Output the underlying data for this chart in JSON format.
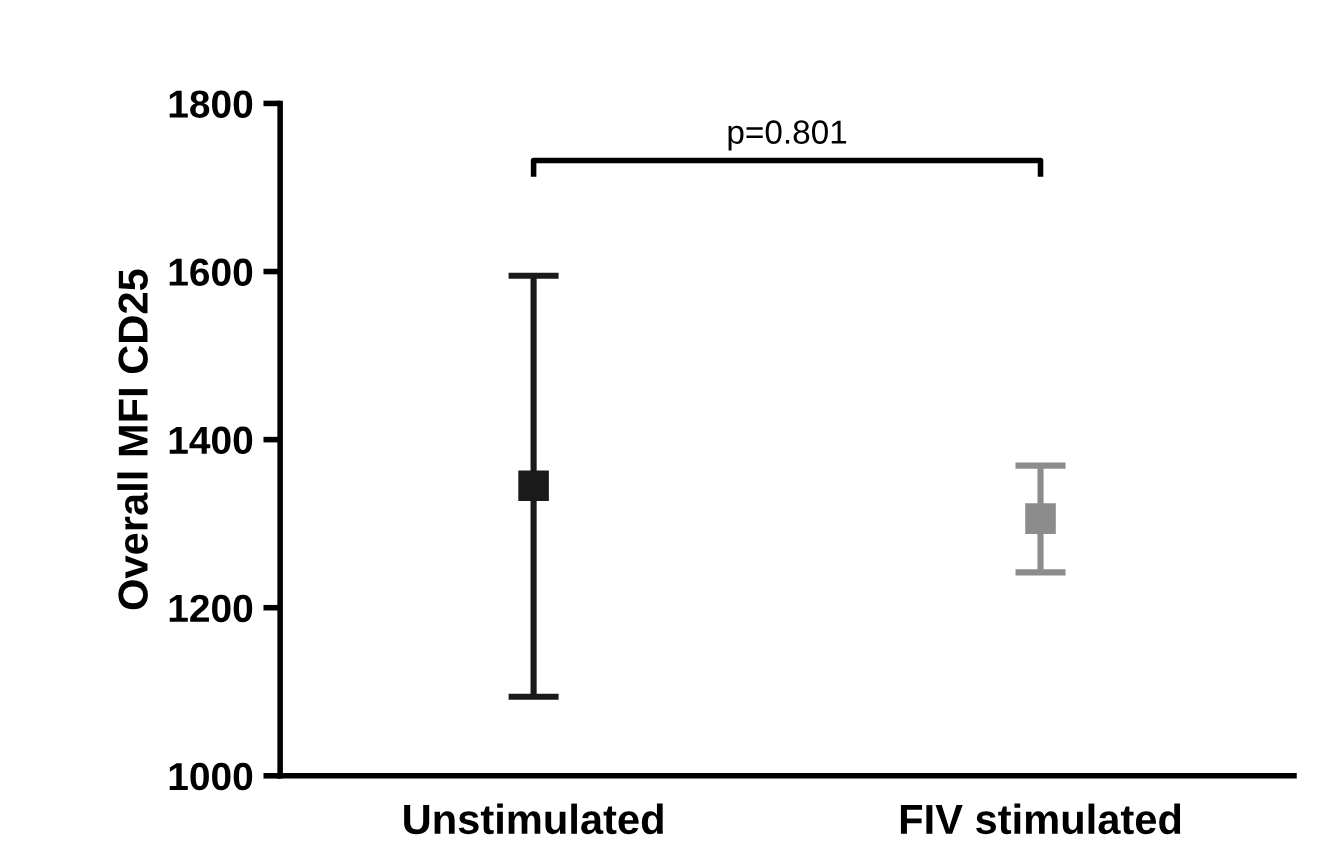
{
  "chart_data": {
    "type": "scatter",
    "ylabel": "Overall MFI CD25",
    "categories": [
      "Unstimulated",
      "FIV stimulated"
    ],
    "values": [
      1345,
      1306
    ],
    "colors": [
      "#1a1a1a",
      "#8c8c8c"
    ],
    "errors": [
      [
        1094,
        1595
      ],
      [
        1242,
        1369
      ]
    ],
    "marker": "square",
    "grid": false,
    "legend": false,
    "ylim": [
      1000,
      1800
    ],
    "yticks": [
      1000,
      1200,
      1400,
      1600,
      1800
    ],
    "annotations": [
      "p=0.801"
    ]
  }
}
